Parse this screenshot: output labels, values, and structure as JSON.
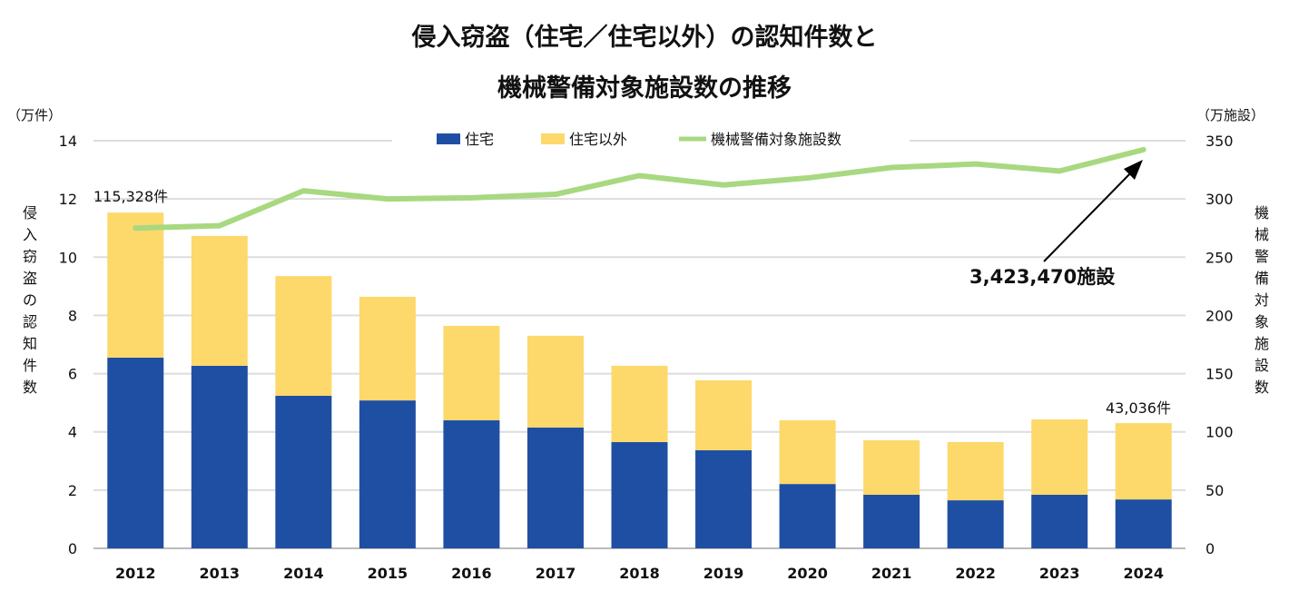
{
  "chart_data": {
    "type": "bar+line",
    "title_lines": [
      "侵入窃盗（住宅／住宅以外）の認知件数と",
      "機械警備対象施設数の推移"
    ],
    "categories": [
      "2012",
      "2013",
      "2014",
      "2015",
      "2016",
      "2017",
      "2018",
      "2019",
      "2020",
      "2021",
      "2022",
      "2023",
      "2024"
    ],
    "series": [
      {
        "name": "住宅",
        "type": "stacked-bar",
        "axis": "left",
        "color": "#1f4fa3",
        "values": [
          6.55,
          6.27,
          5.24,
          5.08,
          4.4,
          4.15,
          3.65,
          3.37,
          2.21,
          1.84,
          1.65,
          1.84,
          1.68
        ]
      },
      {
        "name": "住宅以外",
        "type": "stacked-bar",
        "axis": "left",
        "color": "#fdd86a",
        "values": [
          4.98,
          4.46,
          4.11,
          3.56,
          3.24,
          3.15,
          2.62,
          2.4,
          2.19,
          1.87,
          2.0,
          2.59,
          2.62
        ]
      },
      {
        "name": "機械警備対象施設数",
        "type": "line",
        "axis": "right",
        "color": "#a8d880",
        "values": [
          275,
          277,
          307,
          300,
          301,
          304,
          320,
          312,
          318,
          327,
          330,
          324,
          342.3
        ]
      }
    ],
    "left_axis": {
      "unit": "（万件）",
      "label": "侵入窃盗の認知件数",
      "ylim": [
        0,
        14
      ],
      "ticks": [
        "0",
        "2",
        "4",
        "6",
        "8",
        "10",
        "12",
        "14"
      ]
    },
    "right_axis": {
      "unit": "（万施設）",
      "label": "機械警備対象施設数",
      "ylim": [
        0,
        350
      ],
      "ticks": [
        "0",
        "50",
        "100",
        "150",
        "200",
        "250",
        "300",
        "350"
      ]
    },
    "annotations": {
      "first_total": "115,328件",
      "last_total": "43,036件",
      "last_line": "3,423,470施設"
    },
    "grid": true,
    "legend": "top"
  }
}
